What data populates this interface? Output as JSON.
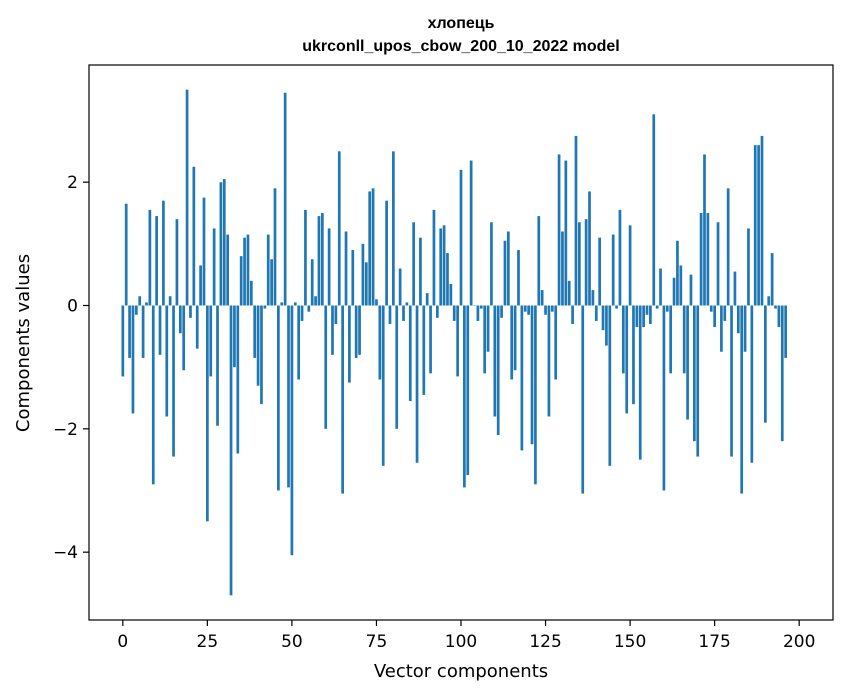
{
  "chart_data": {
    "type": "bar",
    "title": "хлопець",
    "subtitle": "ukrconll_upos_cbow_200_10_2022 model",
    "xlabel": "Vector components",
    "ylabel": "Components values",
    "xlim": [
      -10,
      210
    ],
    "ylim": [
      -5.1,
      3.9
    ],
    "x_ticks": [
      0,
      25,
      50,
      75,
      100,
      125,
      150,
      175,
      200
    ],
    "x_tick_labels": [
      "0",
      "25",
      "50",
      "75",
      "100",
      "125",
      "150",
      "175",
      "200"
    ],
    "y_ticks": [
      -4,
      -2,
      0,
      2
    ],
    "y_tick_labels": [
      "−4",
      "−2",
      "0",
      "2"
    ],
    "bar_color": "#1f77b4",
    "grid": false,
    "legend": "none",
    "values": [
      -1.15,
      1.65,
      -0.85,
      -1.75,
      -0.15,
      0.15,
      -0.85,
      0.05,
      1.55,
      -2.9,
      1.45,
      -0.8,
      1.7,
      -1.8,
      0.15,
      -2.45,
      1.4,
      -0.45,
      -1.05,
      3.5,
      -0.2,
      2.25,
      -0.7,
      0.65,
      1.75,
      -3.5,
      -1.15,
      1.25,
      -1.95,
      2.0,
      2.05,
      1.15,
      -4.7,
      -1.0,
      -2.4,
      0.8,
      1.1,
      1.15,
      0.4,
      -0.85,
      -1.3,
      -1.6,
      -0.05,
      1.15,
      0.75,
      1.9,
      -3.0,
      0.05,
      3.45,
      -2.95,
      -4.05,
      0.05,
      -1.2,
      -0.25,
      1.55,
      -0.1,
      0.75,
      0.15,
      1.45,
      1.5,
      -2.0,
      1.25,
      -0.8,
      -0.3,
      2.5,
      -3.05,
      1.2,
      -1.25,
      0.9,
      -0.85,
      -0.8,
      1.0,
      0.7,
      1.85,
      1.9,
      0.1,
      -1.2,
      -2.6,
      1.7,
      -0.3,
      2.5,
      -2.0,
      0.6,
      -0.25,
      0.05,
      -1.55,
      1.35,
      -2.55,
      1.1,
      -1.45,
      0.2,
      -1.1,
      1.55,
      -0.2,
      1.25,
      1.3,
      0.85,
      0.35,
      -0.25,
      -1.15,
      2.2,
      -2.95,
      -2.75,
      2.35,
      0.0,
      -0.25,
      -0.05,
      -1.1,
      -0.75,
      1.35,
      -1.8,
      -2.1,
      -0.2,
      1.05,
      1.2,
      -1.2,
      -1.05,
      0.9,
      -2.35,
      -0.1,
      -0.15,
      -2.25,
      -2.9,
      1.45,
      0.25,
      -0.15,
      -1.8,
      -0.1,
      -1.2,
      2.45,
      1.2,
      2.35,
      0.4,
      -0.3,
      2.75,
      1.35,
      -3.05,
      1.4,
      1.85,
      0.25,
      -0.25,
      1.1,
      -0.4,
      -0.65,
      -2.6,
      1.15,
      -0.05,
      1.55,
      -1.1,
      -1.75,
      1.3,
      -1.6,
      -0.35,
      -2.5,
      -0.35,
      -0.15,
      -0.3,
      3.1,
      -0.05,
      0.6,
      -3.0,
      -0.1,
      -1.1,
      0.45,
      1.05,
      0.65,
      -1.1,
      -1.85,
      0.5,
      -2.2,
      -2.45,
      1.5,
      2.45,
      1.5,
      -0.1,
      -0.35,
      1.35,
      -0.75,
      -0.25,
      1.9,
      -2.45,
      0.55,
      -0.45,
      -3.05,
      -0.75,
      1.25,
      -2.55,
      2.6,
      2.6,
      2.75,
      -1.9,
      0.15,
      0.85,
      -0.05,
      -0.35,
      -2.2,
      -0.85
    ]
  }
}
